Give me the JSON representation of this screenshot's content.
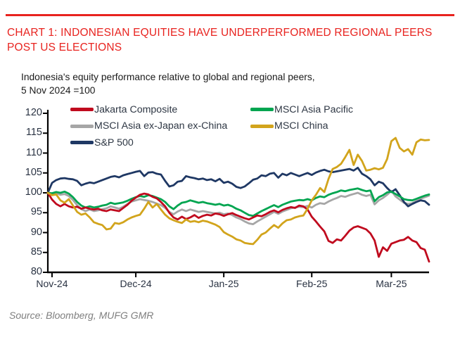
{
  "header": {
    "title": "CHART 1: INDONESIAN EQUITIES HAVE UNDERPERFORMED REGIONAL PEERS POST US ELECTIONS",
    "subtitle": "Indonesia's equity performance relative to global and regional peers,\n5 Nov 2024 =100"
  },
  "footer": {
    "source": "Source: Bloomberg, MUFG GMR"
  },
  "colors": {
    "accent_red": "#e8231f",
    "axis_line": "#000000",
    "axis_text": "#2a3343",
    "subtitle_text": "#1a1a1a",
    "source_gray": "#7f7f7f"
  },
  "chart_data": {
    "type": "line",
    "title": "Indonesia's equity performance relative to global and regional peers, 5 Nov 2024 =100",
    "xlabel": "",
    "ylabel": "",
    "grid": false,
    "legend_position": "top-left, two columns, inside plot",
    "x_axis": {
      "unit": "trading days since 5 Nov 2024",
      "ticks": [
        {
          "label": "Nov-24",
          "day": 1
        },
        {
          "label": "Dec-24",
          "day": 21
        },
        {
          "label": "Jan-25",
          "day": 42
        },
        {
          "label": "Feb-25",
          "day": 63
        },
        {
          "label": "Mar-25",
          "day": 82
        }
      ]
    },
    "y_axis": {
      "min": 80,
      "max": 120,
      "step": 5,
      "ticks": [
        120,
        115,
        110,
        105,
        100,
        95,
        90,
        85,
        80
      ]
    },
    "draw_order": [
      2,
      4,
      1,
      0,
      3
    ],
    "series": [
      {
        "id": "jakarta-composite",
        "name": "Jakarta Composite",
        "color": "#c00a1e",
        "values": [
          100,
          98.3,
          97.2,
          96.6,
          97.2,
          96.6,
          96.3,
          96.5,
          96.0,
          96.3,
          96.0,
          95.8,
          96.0,
          95.6,
          95.4,
          95.8,
          95.6,
          95.4,
          96.2,
          97.0,
          98.0,
          98.8,
          99.5,
          99.8,
          99.6,
          99.0,
          98.6,
          97.7,
          96.6,
          95.0,
          93.8,
          93.3,
          94.0,
          93.4,
          93.8,
          94.4,
          93.7,
          94.2,
          94.5,
          94.3,
          94.8,
          94.6,
          94.2,
          94.6,
          94.9,
          94.4,
          94.0,
          93.6,
          93.3,
          93.8,
          94.3,
          94.1,
          94.6,
          95.2,
          95.6,
          95.1,
          95.7,
          96.1,
          96.4,
          96.2,
          96.8,
          96.6,
          95.8,
          94.0,
          92.8,
          91.5,
          90.3,
          87.9,
          87.4,
          88.3,
          88.0,
          89.2,
          90.5,
          91.3,
          91.6,
          91.2,
          90.8,
          89.8,
          88.0,
          83.9,
          86.3,
          85.4,
          87.2,
          87.6,
          88.0,
          88.2,
          88.9,
          88.0,
          87.6,
          86.1,
          85.7,
          82.7
        ]
      },
      {
        "id": "msci-asia-pacific",
        "name": "MSCI Asia Pacific",
        "color": "#00a550",
        "values": [
          100,
          99.9,
          100.2,
          100.0,
          100.3,
          99.8,
          98.9,
          97.7,
          96.8,
          96.3,
          96.6,
          96.3,
          96.5,
          96.8,
          97.0,
          97.5,
          97.2,
          97.4,
          97.6,
          98.0,
          98.5,
          98.9,
          99.2,
          99.0,
          99.4,
          99.2,
          98.8,
          98.4,
          97.7,
          96.6,
          95.9,
          96.8,
          97.5,
          97.7,
          98.1,
          97.8,
          97.5,
          97.7,
          97.4,
          97.2,
          97.0,
          97.2,
          96.8,
          97.0,
          96.6,
          96.0,
          95.6,
          95.0,
          94.4,
          94.2,
          94.8,
          95.4,
          95.9,
          96.4,
          96.9,
          96.4,
          97.0,
          97.4,
          97.8,
          98.0,
          98.2,
          98.1,
          98.4,
          98.1,
          98.7,
          99.1,
          98.9,
          99.5,
          99.9,
          100.2,
          100.6,
          100.4,
          100.7,
          100.9,
          101.1,
          100.7,
          100.4,
          100.6,
          97.9,
          98.9,
          99.4,
          100.1,
          100.3,
          99.7,
          99.1,
          98.4,
          98.2,
          98.1,
          98.5,
          98.9,
          99.3,
          99.6
        ]
      },
      {
        "id": "msci-asia-ex-japan-ex-china",
        "name": "MSCI Asia ex-Japan ex-China",
        "color": "#a6a6a6",
        "values": [
          100,
          99.6,
          99.9,
          99.5,
          99.7,
          99.2,
          98.2,
          96.9,
          95.9,
          95.4,
          95.8,
          95.4,
          95.6,
          95.9,
          96.1,
          96.6,
          96.3,
          96.0,
          96.5,
          97.2,
          97.8,
          98.1,
          98.4,
          98.2,
          98.0,
          97.7,
          97.3,
          96.9,
          96.2,
          95.2,
          94.6,
          95.3,
          95.8,
          95.4,
          95.8,
          95.5,
          95.2,
          95.4,
          95.2,
          95.0,
          94.8,
          95.0,
          94.6,
          94.8,
          94.4,
          93.8,
          93.4,
          92.8,
          92.3,
          92.1,
          92.8,
          93.4,
          94.0,
          94.6,
          95.2,
          94.7,
          95.3,
          95.7,
          96.1,
          96.3,
          96.5,
          96.4,
          96.7,
          96.3,
          97.0,
          97.4,
          97.2,
          97.8,
          98.3,
          98.7,
          99.2,
          99.0,
          99.4,
          99.7,
          100.0,
          99.5,
          99.2,
          99.5,
          97.1,
          98.1,
          98.7,
          99.5,
          100.5,
          99.1,
          98.3,
          97.5,
          97.2,
          97.4,
          98.0,
          98.5,
          98.9,
          99.3
        ]
      },
      {
        "id": "msci-china",
        "name": "MSCI China",
        "color": "#d2a41c",
        "values": [
          100,
          99.4,
          99.6,
          98.1,
          97.5,
          98.4,
          96.8,
          95.2,
          94.5,
          94.8,
          93.8,
          92.6,
          92.2,
          91.9,
          90.8,
          91.0,
          92.4,
          92.2,
          92.6,
          93.3,
          93.8,
          94.2,
          94.5,
          96.0,
          97.7,
          96.3,
          97.2,
          95.8,
          94.5,
          93.6,
          93.1,
          92.7,
          92.4,
          93.3,
          92.7,
          92.9,
          92.6,
          93.0,
          92.8,
          92.4,
          92.0,
          91.4,
          90.1,
          89.5,
          89.0,
          88.3,
          88.0,
          87.4,
          87.2,
          87.1,
          88.2,
          89.5,
          90.0,
          91.0,
          91.9,
          91.2,
          92.3,
          93.1,
          93.3,
          93.8,
          94.1,
          94.3,
          96.0,
          98.1,
          99.5,
          101.2,
          100.2,
          103.5,
          106.0,
          106.5,
          107.3,
          109.0,
          110.8,
          107.0,
          109.6,
          108.0,
          105.6,
          105.8,
          106.2,
          105.9,
          106.3,
          108.5,
          113.0,
          113.8,
          111.3,
          110.4,
          111.0,
          109.6,
          112.7,
          113.4,
          113.2,
          113.3
        ]
      },
      {
        "id": "sp-500",
        "name": "S&P 500",
        "color": "#1f3864",
        "values": [
          100,
          102.5,
          103.2,
          103.6,
          103.7,
          103.5,
          103.4,
          103.0,
          101.9,
          102.3,
          102.6,
          102.4,
          102.8,
          103.2,
          103.6,
          104.0,
          104.2,
          103.9,
          104.4,
          104.7,
          105.0,
          105.3,
          105.5,
          104.2,
          105.1,
          105.2,
          104.8,
          104.6,
          103.0,
          101.6,
          101.9,
          102.8,
          103.0,
          104.2,
          103.9,
          103.7,
          103.4,
          103.6,
          103.2,
          103.4,
          102.9,
          103.5,
          102.5,
          102.8,
          102.3,
          101.5,
          101.2,
          101.6,
          102.4,
          103.3,
          103.6,
          104.4,
          104.2,
          104.8,
          105.0,
          103.8,
          104.8,
          104.4,
          105.0,
          104.6,
          104.2,
          104.6,
          105.0,
          104.5,
          105.1,
          105.5,
          105.8,
          105.4,
          105.2,
          105.4,
          105.6,
          105.8,
          106.0,
          105.6,
          106.3,
          104.8,
          104.2,
          103.4,
          101.9,
          102.8,
          102.4,
          101.2,
          100.2,
          100.9,
          99.4,
          97.7,
          96.6,
          97.2,
          97.7,
          98.1,
          97.9,
          97.0
        ]
      }
    ]
  }
}
